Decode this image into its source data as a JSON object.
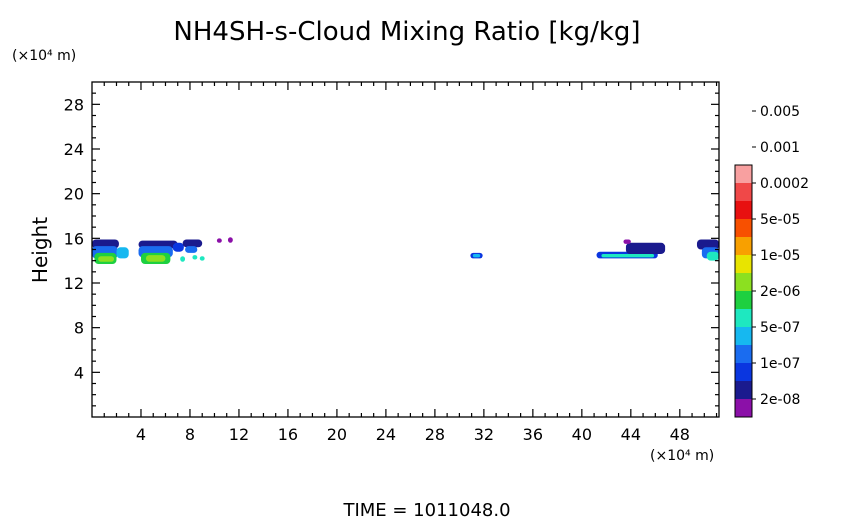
{
  "chart_data": {
    "type": "heatmap",
    "title": "NH4SH-s-Cloud Mixing Ratio [kg/kg]",
    "ylabel": "Height",
    "y_unit": "(×10⁴ m)",
    "x_unit": "(×10⁴ m)",
    "xlim": [
      0,
      51.2
    ],
    "ylim": [
      0,
      30
    ],
    "x_ticks": [
      4,
      8,
      12,
      16,
      20,
      24,
      28,
      32,
      36,
      40,
      44,
      48
    ],
    "x_tick_labels": [
      "4",
      "8",
      "12",
      "16",
      "20",
      "24",
      "28",
      "32",
      "36",
      "40",
      "44",
      "48"
    ],
    "y_ticks": [
      4,
      8,
      12,
      16,
      20,
      24,
      28
    ],
    "y_tick_labels": [
      "4",
      "8",
      "12",
      "16",
      "20",
      "24",
      "28"
    ],
    "footer": "TIME = 1011048.0",
    "colorbar": {
      "colors": [
        "#8b10a8",
        "#1a1a8e",
        "#0a36e0",
        "#1a6cf0",
        "#16b8f0",
        "#1ee8c0",
        "#1ed040",
        "#8ce020",
        "#e8e400",
        "#f8a000",
        "#f85000",
        "#e81010",
        "#f04848",
        "#f8a0a0"
      ],
      "labels": [
        "2e-08",
        "1e-07",
        "5e-07",
        "2e-06",
        "1e-05",
        "5e-05",
        "0.0002",
        "0.001",
        "0.005"
      ]
    },
    "regions": [
      {
        "x0": 0.0,
        "x1": 2.2,
        "y0": 15.1,
        "y1": 15.9,
        "level": 1
      },
      {
        "x0": 0.0,
        "x1": 2.1,
        "y0": 14.2,
        "y1": 15.3,
        "level": 3
      },
      {
        "x0": 0.2,
        "x1": 2.0,
        "y0": 13.7,
        "y1": 14.7,
        "level": 6
      },
      {
        "x0": 0.5,
        "x1": 1.8,
        "y0": 13.9,
        "y1": 14.4,
        "level": 7
      },
      {
        "x0": 2.0,
        "x1": 3.0,
        "y0": 14.2,
        "y1": 15.2,
        "level": 4
      },
      {
        "x0": 3.8,
        "x1": 7.0,
        "y0": 15.1,
        "y1": 15.8,
        "level": 1
      },
      {
        "x0": 3.8,
        "x1": 6.6,
        "y0": 14.3,
        "y1": 15.3,
        "level": 3
      },
      {
        "x0": 4.0,
        "x1": 6.4,
        "y0": 13.7,
        "y1": 14.7,
        "level": 6
      },
      {
        "x0": 4.4,
        "x1": 6.0,
        "y0": 13.9,
        "y1": 14.5,
        "level": 7
      },
      {
        "x0": 6.6,
        "x1": 7.5,
        "y0": 14.8,
        "y1": 15.6,
        "level": 2
      },
      {
        "x0": 7.4,
        "x1": 9.0,
        "y0": 15.2,
        "y1": 15.9,
        "level": 1
      },
      {
        "x0": 7.6,
        "x1": 8.6,
        "y0": 14.7,
        "y1": 15.3,
        "level": 3
      },
      {
        "x0": 8.2,
        "x1": 8.6,
        "y0": 14.1,
        "y1": 14.5,
        "level": 5
      },
      {
        "x0": 7.2,
        "x1": 7.6,
        "y0": 13.9,
        "y1": 14.4,
        "level": 5
      },
      {
        "x0": 8.8,
        "x1": 9.2,
        "y0": 14.0,
        "y1": 14.4,
        "level": 5
      },
      {
        "x0": 10.2,
        "x1": 10.6,
        "y0": 15.6,
        "y1": 16.0,
        "level": 0
      },
      {
        "x0": 11.1,
        "x1": 11.5,
        "y0": 15.6,
        "y1": 16.1,
        "level": 0
      },
      {
        "x0": 30.9,
        "x1": 31.9,
        "y0": 14.2,
        "y1": 14.7,
        "level": 2
      },
      {
        "x0": 31.1,
        "x1": 31.7,
        "y0": 14.3,
        "y1": 14.6,
        "level": 4
      },
      {
        "x0": 41.2,
        "x1": 46.2,
        "y0": 14.2,
        "y1": 14.8,
        "level": 2
      },
      {
        "x0": 41.6,
        "x1": 45.9,
        "y0": 14.3,
        "y1": 14.6,
        "level": 5
      },
      {
        "x0": 43.6,
        "x1": 46.8,
        "y0": 14.6,
        "y1": 15.6,
        "level": 1
      },
      {
        "x0": 43.4,
        "x1": 44.0,
        "y0": 15.5,
        "y1": 15.9,
        "level": 0
      },
      {
        "x0": 49.4,
        "x1": 51.2,
        "y0": 15.0,
        "y1": 15.9,
        "level": 1
      },
      {
        "x0": 49.8,
        "x1": 51.2,
        "y0": 14.2,
        "y1": 15.2,
        "level": 3
      },
      {
        "x0": 50.2,
        "x1": 51.2,
        "y0": 14.0,
        "y1": 14.8,
        "level": 5
      }
    ]
  }
}
